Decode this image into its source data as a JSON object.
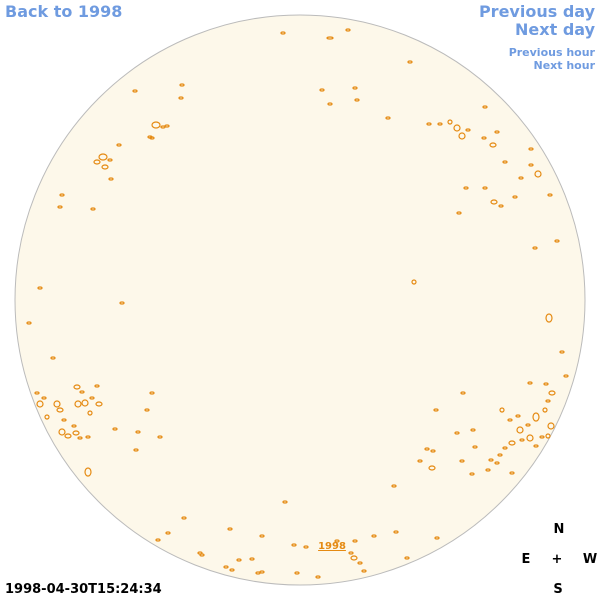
{
  "nav": {
    "back_label": "Back to 1998",
    "prev_day_label": "Previous day",
    "next_day_label": "Next day",
    "prev_hour_label": "Previous hour",
    "next_hour_label": "Next hour"
  },
  "map": {
    "year_label": "1998",
    "disk_fill": "#fdf8ea",
    "disk_stroke": "#bbbbbb",
    "contour_color": "#e58a12"
  },
  "compass": {
    "north": "N",
    "east": "E",
    "center": "+",
    "west": "W",
    "south": "S"
  },
  "timestamp": "1998-04-30T15:24:34"
}
